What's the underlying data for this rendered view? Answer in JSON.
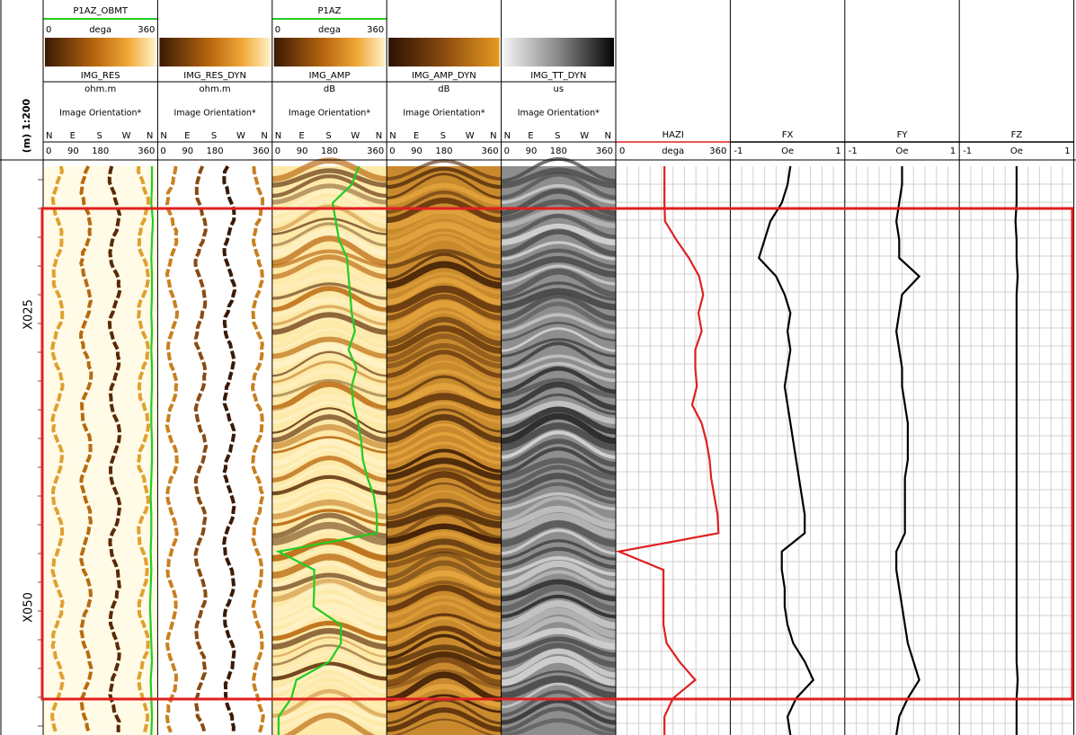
{
  "depth_track": {
    "scale": "(m) 1:200",
    "labels": [
      "X025",
      "X050"
    ]
  },
  "image_tracks": [
    {
      "curve": {
        "name": "P1AZ_OBMT",
        "min": 0,
        "unit": "dega",
        "max": 360,
        "color": "#22cc22",
        "values": [
          342,
          342,
          340,
          345,
          342,
          340,
          342,
          342,
          340,
          342,
          340,
          342,
          342,
          340,
          340,
          342,
          342,
          340,
          338,
          340,
          340,
          338,
          340,
          338,
          336,
          338,
          340,
          342,
          338,
          340,
          342,
          340
        ]
      },
      "image": "IMG_RES",
      "unit": "ohm.m",
      "orientation": "Image Orientation*",
      "letters": [
        "N",
        "E",
        "S",
        "W",
        "N"
      ],
      "ticks": [
        0,
        90,
        180,
        360
      ]
    },
    {
      "image": "IMG_RES_DYN",
      "unit": "ohm.m",
      "orientation": "Image Orientation*",
      "letters": [
        "N",
        "E",
        "S",
        "W",
        "N"
      ],
      "ticks": [
        0,
        90,
        180,
        360
      ]
    },
    {
      "curve": {
        "name": "P1AZ",
        "min": 0,
        "unit": "dega",
        "max": 360,
        "color": "#22cc22",
        "values": [
          273,
          250,
          190,
          200,
          210,
          235,
          240,
          245,
          250,
          260,
          240,
          265,
          250,
          255,
          270,
          280,
          285,
          300,
          320,
          329,
          329,
          20,
          132,
          132,
          130,
          216,
          216,
          180,
          76,
          60,
          20,
          20
        ]
      },
      "image": "IMG_AMP",
      "unit": "dB",
      "orientation": "Image Orientation*",
      "letters": [
        "N",
        "E",
        "S",
        "W",
        "N"
      ],
      "ticks": [
        0,
        90,
        180,
        360
      ]
    },
    {
      "image": "IMG_AMP_DYN",
      "unit": "dB",
      "orientation": "Image Orientation*",
      "letters": [
        "N",
        "E",
        "S",
        "W",
        "N"
      ],
      "ticks": [
        0,
        90,
        180,
        360
      ]
    },
    {
      "image": "IMG_TT_DYN",
      "unit": "us",
      "orientation": "Image Orientation*",
      "letters": [
        "N",
        "E",
        "S",
        "W",
        "N"
      ],
      "ticks": [
        0,
        90,
        180,
        360
      ]
    }
  ],
  "curve_tracks": [
    {
      "name": "HAZI",
      "min": 0,
      "unit": "dega",
      "max": 360,
      "color": "#e02020",
      "values": [
        153,
        153,
        153,
        155,
        190,
        230,
        262,
        275,
        260,
        270,
        250,
        250,
        255,
        240,
        270,
        285,
        295,
        300,
        310,
        320,
        323,
        10,
        150,
        150,
        150,
        150,
        160,
        200,
        250,
        180,
        153,
        153
      ]
    },
    {
      "name": "FX",
      "min": -1,
      "unit": "Oe",
      "max": 1,
      "color": "#000000",
      "values": [
        0.05,
        0.0,
        -0.1,
        -0.3,
        -0.4,
        -0.5,
        -0.2,
        -0.05,
        0.05,
        0.0,
        0.05,
        0.0,
        -0.05,
        0.0,
        0.05,
        0.1,
        0.15,
        0.2,
        0.25,
        0.3,
        0.3,
        -0.1,
        -0.1,
        -0.05,
        -0.05,
        0.0,
        0.1,
        0.3,
        0.45,
        0.15,
        0.0,
        0.05
      ]
    },
    {
      "name": "FY",
      "min": -1,
      "unit": "Oe",
      "max": 1,
      "color": "#000000",
      "values": [
        0.0,
        0.0,
        -0.05,
        -0.1,
        -0.05,
        -0.05,
        0.3,
        0.0,
        -0.05,
        -0.1,
        -0.05,
        0.0,
        0.0,
        0.05,
        0.1,
        0.1,
        0.1,
        0.05,
        0.05,
        0.05,
        0.05,
        -0.1,
        -0.1,
        -0.05,
        0.0,
        0.05,
        0.1,
        0.2,
        0.3,
        0.1,
        -0.05,
        -0.1
      ]
    },
    {
      "name": "FZ",
      "min": -1,
      "unit": "Oe",
      "max": 1,
      "color": "#000000",
      "values": [
        0.0,
        0.0,
        0.0,
        -0.02,
        0.0,
        0.0,
        0.02,
        0.0,
        0.0,
        0.0,
        0.0,
        0.0,
        0.0,
        0.0,
        0.0,
        0.0,
        0.0,
        0.0,
        0.0,
        0.0,
        0.0,
        0.0,
        0.0,
        0.0,
        0.0,
        0.0,
        0.0,
        0.0,
        0.02,
        0.0,
        0.0,
        0.0
      ]
    }
  ]
}
